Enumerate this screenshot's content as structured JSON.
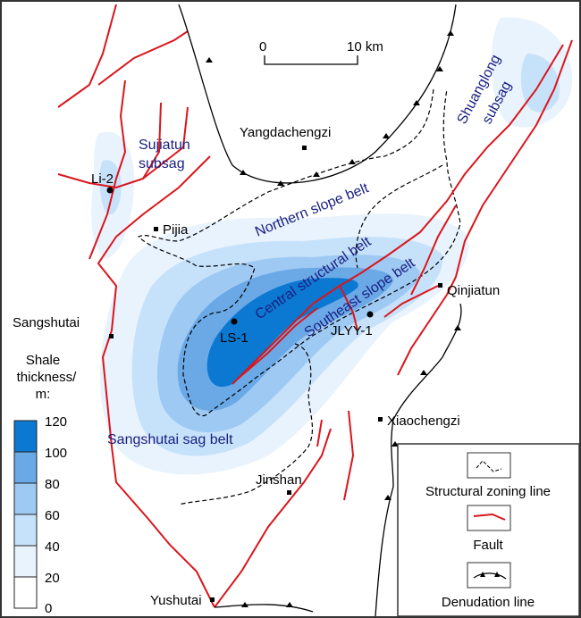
{
  "scale_bar": {
    "start": "0",
    "end": "10 km"
  },
  "colors": {
    "band_100_120": "#0b78d1",
    "band_80_100": "#6aa8e6",
    "band_60_80": "#9ec9f3",
    "band_40_60": "#c6e2fa",
    "band_20_40": "#e9f3fd",
    "band_0_20": "#ffffff",
    "fault": "#d9161c",
    "zoning": "#000000",
    "label": "#1a1f80"
  },
  "belts": {
    "sujiatun_1": "Sujiatun",
    "sujiatun_2": "subsag",
    "shuanglong_1": "Shuanglong",
    "shuanglong_2": "subsag",
    "northern": "Northern slope belt",
    "central": "Central structural belt",
    "southeast": "Southeast slope belt",
    "sangshutai": "Sangshutai sag belt"
  },
  "places": {
    "yangdachengzi": "Yangdachengzi",
    "pijia": "Pijia",
    "sangshutai": "Sangshutai",
    "qinjiatun": "Qinjiatun",
    "xiaochengzi": "Xiaochengzi",
    "jinshan": "Jinshan",
    "yushutai": "Yushutai"
  },
  "wells": {
    "li2": "Li-2",
    "ls1": "LS-1",
    "jlyy1": "JLYY-1"
  },
  "thickness_legend": {
    "title_1": "Shale",
    "title_2": "thickness/",
    "title_3": "m:",
    "ticks": [
      "120",
      "100",
      "80",
      "60",
      "40",
      "20",
      "0"
    ]
  },
  "line_legend": {
    "zoning": "Structural zoning line",
    "fault": "Fault",
    "denudation": "Denudation line"
  }
}
